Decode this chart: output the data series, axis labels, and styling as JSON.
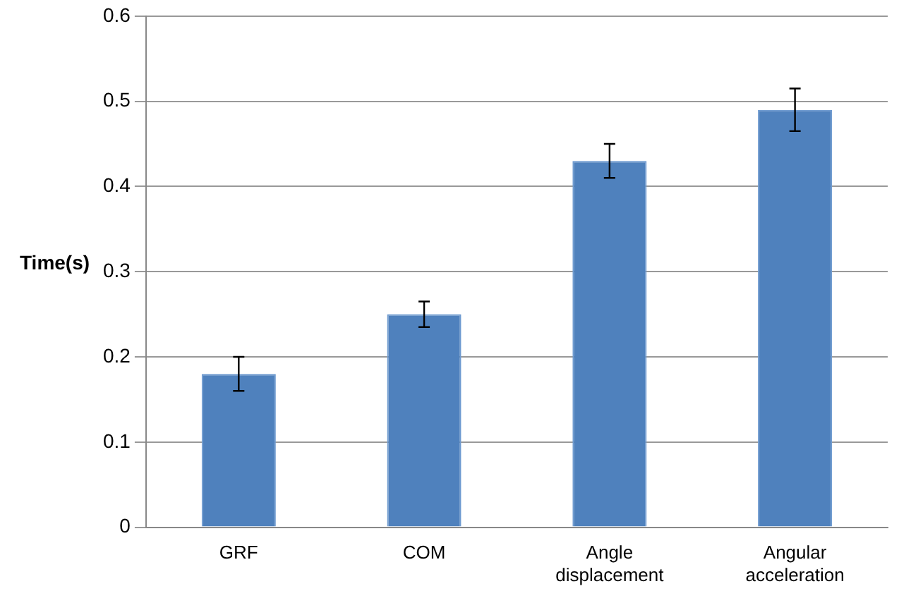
{
  "chart_data": {
    "type": "bar",
    "ylabel": "Time(s)",
    "categories": [
      "GRF",
      "COM",
      "Angle displacement",
      "Angular acceleration"
    ],
    "values": [
      0.18,
      0.25,
      0.43,
      0.49
    ],
    "errors": [
      0.02,
      0.015,
      0.02,
      0.025
    ],
    "color": "#4f81bd",
    "ylim": [
      0,
      0.6
    ],
    "yticks": [
      0,
      0.1,
      0.2,
      0.3,
      0.4,
      0.5,
      0.6
    ],
    "grid": "y"
  }
}
